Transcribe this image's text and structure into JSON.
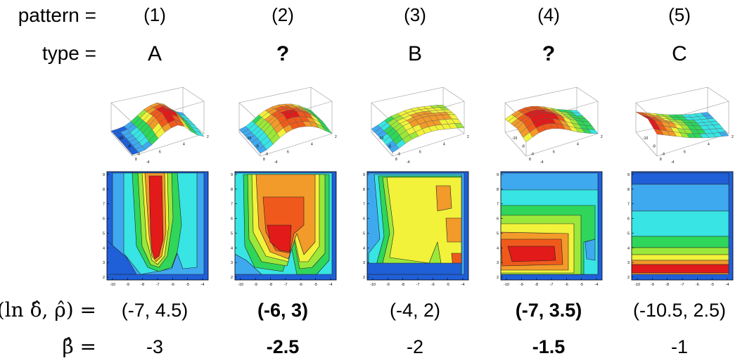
{
  "labels": {
    "pattern": "pattern  =",
    "type": "type  =",
    "coord": "(ln δ̂, ρ̂)  =",
    "beta": "β̂  ="
  },
  "patterns": [
    {
      "pattern": "(1)",
      "type": "A",
      "coord": "(-7, 4.5)",
      "beta": "-3",
      "emphasis": false
    },
    {
      "pattern": "(2)",
      "type": "?",
      "coord": "(-6, 3)",
      "beta": "-2.5",
      "emphasis": true
    },
    {
      "pattern": "(3)",
      "type": "B",
      "coord": "(-4, 2)",
      "beta": "-2",
      "emphasis": false
    },
    {
      "pattern": "(4)",
      "type": "?",
      "coord": "(-7, 3.5)",
      "beta": "-1.5",
      "emphasis": true
    },
    {
      "pattern": "(5)",
      "type": "C",
      "coord": "(-10.5, 2.5)",
      "beta": "-1",
      "emphasis": false
    }
  ],
  "contour_axes": {
    "x_ticks": [
      "-10",
      "-9",
      "-8",
      "-7",
      "-6",
      "-5",
      "-4"
    ],
    "y_ticks": [
      "2",
      "3",
      "4",
      "5",
      "6",
      "7",
      "8",
      "9"
    ]
  },
  "surface_ticks": {
    "side": [
      "-10",
      "-8",
      "-6",
      "-4"
    ],
    "front": [
      "8",
      "6",
      "4",
      "2"
    ]
  },
  "colors": {
    "blue": "#1f5fd8",
    "skyblue": "#3fa9f0",
    "cyan": "#38e4e4",
    "green": "#2fd65a",
    "lime": "#9be83a",
    "yellow": "#f2f23a",
    "orange": "#f29a2a",
    "orange_red": "#ef5a1c",
    "red": "#e21a1a"
  }
}
